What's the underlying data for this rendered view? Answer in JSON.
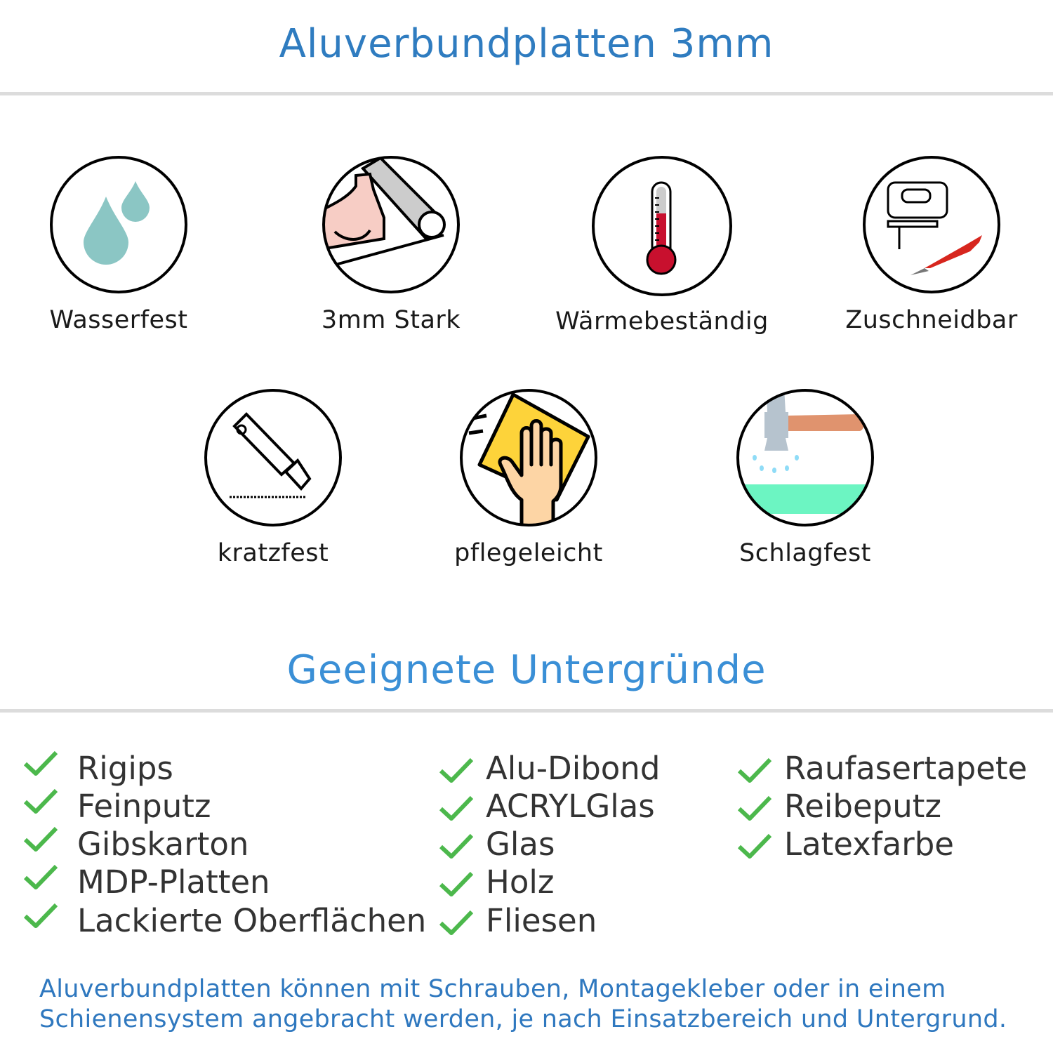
{
  "header": {
    "title": "Aluverbundplatten 3mm"
  },
  "features": [
    {
      "label": "Wasserfest",
      "icon": "water-drops-icon"
    },
    {
      "label": "3mm Stark",
      "icon": "strong-arm-icon"
    },
    {
      "label": "Wärmebeständig",
      "icon": "thermometer-icon"
    },
    {
      "label": "Zuschneidbar",
      "icon": "jigsaw-icon"
    },
    {
      "label": "kratzfest",
      "icon": "cutter-knife-icon"
    },
    {
      "label": "pflegeleicht",
      "icon": "hand-cloth-icon"
    },
    {
      "label": "Schlagfest",
      "icon": "hammer-icon"
    }
  ],
  "substrates": {
    "title": "Geeignete Untergründe",
    "columns": [
      [
        "Rigips",
        "Feinputz",
        "Gibskarton",
        "MDP-Platten",
        "Lackierte Oberflächen"
      ],
      [
        "Alu-Dibond",
        "ACRYLGlas",
        "Glas",
        "Holz",
        "Fliesen"
      ],
      [
        "Raufasertapete",
        "Reibeputz",
        "Latexfarbe"
      ]
    ]
  },
  "footer": {
    "line1": "Aluverbundplatten können mit Schrauben, Montagekleber oder in einem",
    "line2": "Schienensystem angebracht werden, je nach Einsatzbereich und Untergrund."
  },
  "colors": {
    "title": "#2f7cc0",
    "check": "#4cb84c",
    "text": "#333333",
    "rule": "#dcdcdc"
  }
}
